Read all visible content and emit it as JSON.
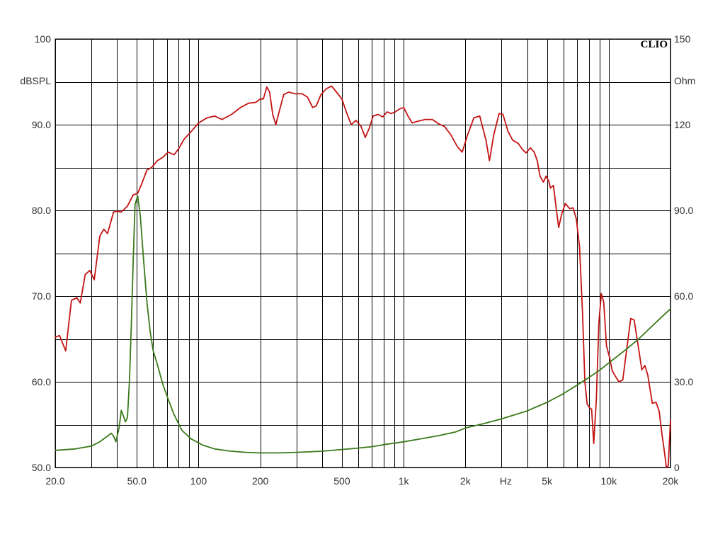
{
  "chart_data": {
    "type": "line",
    "brand": "CLIO",
    "x_scale": "log",
    "xlim": [
      20,
      20000
    ],
    "x_major_ticks": [
      20,
      50,
      100,
      200,
      500,
      1000,
      2000,
      5000,
      10000,
      20000
    ],
    "x_tick_labels": [
      "20.0",
      "50.0",
      "100",
      "200",
      "500",
      "1k",
      "2k",
      "5k",
      "10k",
      "20k"
    ],
    "x_gridlines": [
      20,
      30,
      40,
      50,
      60,
      70,
      80,
      90,
      100,
      200,
      300,
      400,
      500,
      600,
      700,
      800,
      900,
      1000,
      2000,
      3000,
      4000,
      5000,
      6000,
      7000,
      8000,
      9000,
      10000,
      20000
    ],
    "xlabel": "Hz",
    "xlabel_position": 3000,
    "y_left": {
      "label": "dBSPL",
      "lim": [
        50,
        100
      ],
      "ticks": [
        50,
        60,
        70,
        80,
        90,
        100
      ],
      "tick_labels": [
        "50.0",
        "60.0",
        "70.0",
        "80.0",
        "90.0",
        "100"
      ],
      "gridlines": [
        50,
        55,
        60,
        65,
        70,
        75,
        80,
        85,
        90,
        95,
        100
      ]
    },
    "y_right": {
      "label": "Ohm",
      "lim": [
        0,
        150
      ],
      "ticks": [
        0,
        30,
        60,
        90,
        120,
        150
      ],
      "tick_labels": [
        "0",
        "30.0",
        "60.0",
        "90.0",
        "120",
        "150"
      ]
    },
    "grid": true,
    "series": [
      {
        "axis": "left",
        "color": "#c41414",
        "points": [
          [
            20,
            65.2
          ],
          [
            21,
            65.4
          ],
          [
            22.5,
            63.6
          ],
          [
            24,
            69.5
          ],
          [
            25.5,
            69.8
          ],
          [
            26.5,
            69.2
          ],
          [
            28,
            72.5
          ],
          [
            29.5,
            73.0
          ],
          [
            31,
            71.9
          ],
          [
            33,
            77.0
          ],
          [
            34.5,
            77.8
          ],
          [
            36,
            77.3
          ],
          [
            38.5,
            79.8
          ],
          [
            40,
            79.9
          ],
          [
            42,
            79.8
          ],
          [
            45,
            80.5
          ],
          [
            48,
            81.8
          ],
          [
            50.5,
            82.0
          ],
          [
            53,
            83.2
          ],
          [
            56,
            84.7
          ],
          [
            59,
            85.0
          ],
          [
            63,
            85.8
          ],
          [
            67,
            86.2
          ],
          [
            71,
            86.8
          ],
          [
            76,
            86.5
          ],
          [
            80,
            87.2
          ],
          [
            85,
            88.3
          ],
          [
            92,
            89.2
          ],
          [
            100,
            90.2
          ],
          [
            110,
            90.8
          ],
          [
            120,
            91.0
          ],
          [
            130,
            90.6
          ],
          [
            145,
            91.2
          ],
          [
            160,
            92.0
          ],
          [
            175,
            92.5
          ],
          [
            190,
            92.6
          ],
          [
            200,
            93.0
          ],
          [
            207,
            93.0
          ],
          [
            215,
            94.4
          ],
          [
            222,
            93.8
          ],
          [
            230,
            91.2
          ],
          [
            238,
            90.0
          ],
          [
            247,
            91.5
          ],
          [
            260,
            93.5
          ],
          [
            275,
            93.8
          ],
          [
            295,
            93.6
          ],
          [
            320,
            93.6
          ],
          [
            340,
            93.2
          ],
          [
            360,
            92.0
          ],
          [
            375,
            92.2
          ],
          [
            395,
            93.5
          ],
          [
            420,
            94.2
          ],
          [
            445,
            94.5
          ],
          [
            470,
            93.8
          ],
          [
            500,
            93.0
          ],
          [
            525,
            91.5
          ],
          [
            555,
            90.0
          ],
          [
            585,
            90.5
          ],
          [
            620,
            89.8
          ],
          [
            650,
            88.5
          ],
          [
            680,
            89.6
          ],
          [
            710,
            91.0
          ],
          [
            750,
            91.2
          ],
          [
            790,
            90.9
          ],
          [
            830,
            91.5
          ],
          [
            870,
            91.3
          ],
          [
            910,
            91.5
          ],
          [
            950,
            91.8
          ],
          [
            1000,
            92.0
          ],
          [
            1050,
            91.0
          ],
          [
            1100,
            90.2
          ],
          [
            1170,
            90.4
          ],
          [
            1270,
            90.6
          ],
          [
            1380,
            90.6
          ],
          [
            1480,
            90.1
          ],
          [
            1580,
            89.8
          ],
          [
            1700,
            88.8
          ],
          [
            1830,
            87.4
          ],
          [
            1930,
            86.8
          ],
          [
            2050,
            88.8
          ],
          [
            2200,
            90.8
          ],
          [
            2350,
            91.0
          ],
          [
            2520,
            88.2
          ],
          [
            2620,
            85.8
          ],
          [
            2750,
            88.8
          ],
          [
            2920,
            91.3
          ],
          [
            3050,
            91.2
          ],
          [
            3230,
            89.2
          ],
          [
            3400,
            88.2
          ],
          [
            3620,
            87.8
          ],
          [
            3800,
            87.1
          ],
          [
            3950,
            86.7
          ],
          [
            4150,
            87.3
          ],
          [
            4330,
            86.8
          ],
          [
            4480,
            85.8
          ],
          [
            4620,
            84.0
          ],
          [
            4800,
            83.3
          ],
          [
            4950,
            84.0
          ],
          [
            5100,
            83.4
          ],
          [
            5200,
            82.6
          ],
          [
            5370,
            82.9
          ],
          [
            5550,
            80.2
          ],
          [
            5700,
            78.0
          ],
          [
            5900,
            79.6
          ],
          [
            6150,
            80.8
          ],
          [
            6450,
            80.2
          ],
          [
            6700,
            80.3
          ],
          [
            6950,
            79.0
          ],
          [
            7200,
            75.8
          ],
          [
            7450,
            68.0
          ],
          [
            7650,
            60.0
          ],
          [
            7850,
            57.4
          ],
          [
            8050,
            57.0
          ],
          [
            8250,
            56.8
          ],
          [
            8450,
            52.8
          ],
          [
            8700,
            58.0
          ],
          [
            8950,
            66.8
          ],
          [
            9200,
            70.3
          ],
          [
            9450,
            69.3
          ],
          [
            9750,
            64.2
          ],
          [
            10100,
            62.8
          ],
          [
            10400,
            61.3
          ],
          [
            10800,
            60.6
          ],
          [
            11200,
            60.0
          ],
          [
            11700,
            60.2
          ],
          [
            12300,
            64.2
          ],
          [
            12800,
            67.4
          ],
          [
            13300,
            67.2
          ],
          [
            13900,
            64.3
          ],
          [
            14500,
            61.4
          ],
          [
            15000,
            61.9
          ],
          [
            15500,
            60.8
          ],
          [
            16300,
            57.5
          ],
          [
            17000,
            57.6
          ],
          [
            17600,
            56.6
          ],
          [
            18200,
            53.8
          ],
          [
            18700,
            51.8
          ],
          [
            19100,
            50.0
          ],
          [
            19500,
            50.2
          ],
          [
            20000,
            55.5
          ]
        ]
      },
      {
        "axis": "right",
        "color": "#3a7a1a",
        "points": [
          [
            20,
            6.0
          ],
          [
            25,
            6.5
          ],
          [
            30,
            7.5
          ],
          [
            33,
            9.0
          ],
          [
            36,
            11.0
          ],
          [
            37.5,
            12.0
          ],
          [
            38.5,
            11.0
          ],
          [
            39.5,
            9.0
          ],
          [
            41,
            14.0
          ],
          [
            42,
            20.0
          ],
          [
            43,
            18.0
          ],
          [
            44,
            16.0
          ],
          [
            45,
            17.5
          ],
          [
            46,
            30.0
          ],
          [
            47,
            50.0
          ],
          [
            48,
            72.0
          ],
          [
            49,
            92.0
          ],
          [
            50.5,
            95.0
          ],
          [
            52,
            88.0
          ],
          [
            54,
            72.0
          ],
          [
            56,
            58.0
          ],
          [
            58,
            48.0
          ],
          [
            60,
            41.0
          ],
          [
            63,
            36.0
          ],
          [
            67,
            29.0
          ],
          [
            71,
            24.0
          ],
          [
            76,
            18.5
          ],
          [
            83,
            13.0
          ],
          [
            92,
            10.0
          ],
          [
            105,
            7.8
          ],
          [
            120,
            6.5
          ],
          [
            140,
            5.8
          ],
          [
            170,
            5.3
          ],
          [
            200,
            5.1
          ],
          [
            250,
            5.1
          ],
          [
            300,
            5.3
          ],
          [
            400,
            5.7
          ],
          [
            500,
            6.3
          ],
          [
            600,
            6.8
          ],
          [
            700,
            7.3
          ],
          [
            800,
            8.0
          ],
          [
            900,
            8.5
          ],
          [
            1000,
            9.0
          ],
          [
            1200,
            10.0
          ],
          [
            1500,
            11.2
          ],
          [
            1800,
            12.5
          ],
          [
            2000,
            13.8
          ],
          [
            2500,
            15.5
          ],
          [
            3000,
            17.0
          ],
          [
            4000,
            19.8
          ],
          [
            5000,
            22.8
          ],
          [
            6000,
            25.8
          ],
          [
            7000,
            28.8
          ],
          [
            8000,
            31.5
          ],
          [
            9000,
            34.0
          ],
          [
            10000,
            36.6
          ],
          [
            12000,
            41.0
          ],
          [
            14000,
            45.0
          ],
          [
            16000,
            49.0
          ],
          [
            18000,
            52.5
          ],
          [
            20000,
            55.5
          ]
        ]
      }
    ]
  }
}
